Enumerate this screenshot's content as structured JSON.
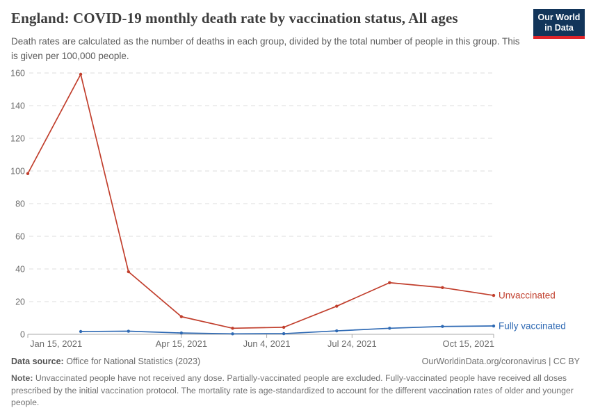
{
  "header": {
    "title": "England: COVID-19 monthly death rate by vaccination status, All ages",
    "subtitle": "Death rates are calculated as the number of deaths in each group, divided by the total number of people in this group. This is given per 100,000 people.",
    "logo": {
      "line1": "Our World",
      "line2": "in Data",
      "bg_color": "#12355a",
      "accent_color": "#e0242a"
    }
  },
  "chart_data": {
    "type": "line",
    "title": "England: COVID-19 monthly death rate by vaccination status, All ages",
    "xlabel": "",
    "ylabel": "",
    "ylim": [
      0,
      160
    ],
    "grid": "dashed-horizontal",
    "legend_position": "right-end-labels",
    "y_axis": {
      "ticks": [
        0,
        20,
        40,
        60,
        80,
        100,
        120,
        140,
        160
      ],
      "tick_color": "#6b6b6b",
      "gridline_color": "#dcdcdc",
      "axis_line_color": "#a9a9a9"
    },
    "x_axis": {
      "range_days": [
        0,
        273
      ],
      "ticks": [
        {
          "label": "Jan 15, 2021",
          "day": 0,
          "anchor": "start"
        },
        {
          "label": "Apr 15, 2021",
          "day": 90,
          "anchor": "middle"
        },
        {
          "label": "Jun 4, 2021",
          "day": 140,
          "anchor": "middle"
        },
        {
          "label": "Jul 24, 2021",
          "day": 190,
          "anchor": "middle"
        },
        {
          "label": "Oct 15, 2021",
          "day": 273,
          "anchor": "end"
        }
      ]
    },
    "series": [
      {
        "name": "Unvaccinated",
        "color": "#c13e2c",
        "x_days": [
          0,
          31,
          59,
          90,
          120,
          150,
          181,
          212,
          243,
          273
        ],
        "values": [
          98.4,
          159.2,
          38.3,
          10.8,
          3.7,
          4.3,
          17.2,
          31.6,
          28.6,
          23.8
        ]
      },
      {
        "name": "Fully vaccinated",
        "color": "#2f6ab4",
        "x_days": [
          31,
          59,
          90,
          120,
          150,
          181,
          212,
          243,
          273
        ],
        "values": [
          1.7,
          1.9,
          0.8,
          0.3,
          0.4,
          2.1,
          3.7,
          4.8,
          5.1
        ]
      }
    ]
  },
  "footer": {
    "datasource_label": "Data source:",
    "datasource_value": " Office for National Statistics (2023)",
    "link_text": "OurWorldinData.org/coronavirus | CC BY",
    "note_label": "Note:",
    "note_text": " Unvaccinated people have not received any dose. Partially-vaccinated people are excluded. Fully-vaccinated people have received all doses prescribed by the initial vaccination protocol. The mortality rate is age-standardized to account for the different vaccination rates of older and younger people."
  }
}
